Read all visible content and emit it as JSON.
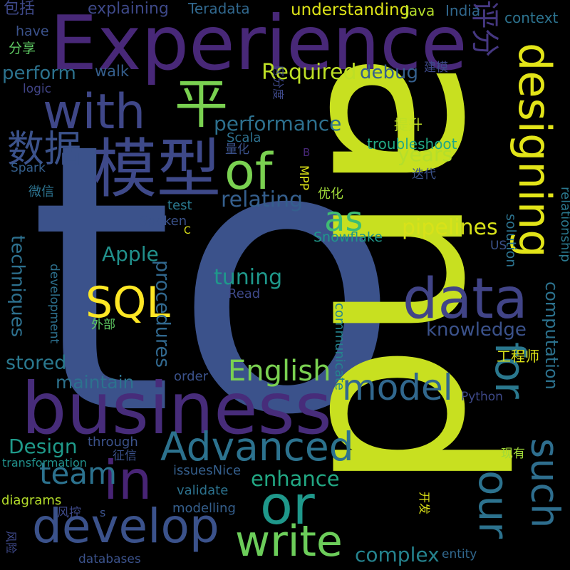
{
  "background": "#000000",
  "words": [
    {
      "text": "to",
      "color": "#3b528b",
      "rot": 0
    },
    {
      "text": "and",
      "color": "#c8e020",
      "rot": 90
    },
    {
      "text": "Experience",
      "color": "#482878",
      "rot": 0
    },
    {
      "text": "business",
      "color": "#472c7a",
      "rot": 0
    },
    {
      "text": "模型",
      "color": "#3e4989",
      "rot": 0
    },
    {
      "text": "with",
      "color": "#3f4788",
      "rot": 0
    },
    {
      "text": "data",
      "color": "#414487",
      "rot": 0
    },
    {
      "text": "designing",
      "color": "#e2e418",
      "rot": 90
    },
    {
      "text": "of",
      "color": "#7ad151",
      "rot": 0
    },
    {
      "text": "develop",
      "color": "#3b528b",
      "rot": 0
    },
    {
      "text": "in",
      "color": "#482475",
      "rot": 0
    },
    {
      "text": "Advanced",
      "color": "#2c728e",
      "rot": 0
    },
    {
      "text": "or",
      "color": "#1f988b",
      "rot": 0
    },
    {
      "text": "our",
      "color": "#2c728e",
      "rot": 90
    },
    {
      "text": "for",
      "color": "#2a788e",
      "rot": 90
    },
    {
      "text": "such",
      "color": "#2e6e8e",
      "rot": 90
    },
    {
      "text": "write",
      "color": "#6ccd5a",
      "rot": 0
    },
    {
      "text": "model",
      "color": "#31688e",
      "rot": 0
    },
    {
      "text": "SQL",
      "color": "#fde725",
      "rot": 0
    },
    {
      "text": "平",
      "color": "#7ad151",
      "rot": 0
    },
    {
      "text": "数据",
      "color": "#3b528b",
      "rot": 0
    },
    {
      "text": "as",
      "color": "#3fbc73",
      "rot": 0
    },
    {
      "text": "English",
      "color": "#7ad151",
      "rot": 0
    },
    {
      "text": "team",
      "color": "#2c728e",
      "rot": 0
    },
    {
      "text": "pipelines",
      "color": "#d8e219",
      "rot": 0
    },
    {
      "text": "Required",
      "color": "#bddf26",
      "rot": 0
    },
    {
      "text": "评分",
      "color": "#453781",
      "rot": 90
    },
    {
      "text": "performance",
      "color": "#2d708e",
      "rot": 0
    },
    {
      "text": "relating",
      "color": "#355f8d",
      "rot": 0
    },
    {
      "text": "years",
      "color": "#b5de2b",
      "rot": 0
    },
    {
      "text": "enhance",
      "color": "#22a884",
      "rot": 0
    },
    {
      "text": "Design",
      "color": "#1f9a8a",
      "rot": 0
    },
    {
      "text": "knowledge",
      "color": "#3b528b",
      "rot": 0
    },
    {
      "text": "procedures",
      "color": "#31688e",
      "rot": 90
    },
    {
      "text": "tuning",
      "color": "#1f988b",
      "rot": 0
    },
    {
      "text": "complex",
      "color": "#25838e",
      "rot": 0
    },
    {
      "text": "Apple",
      "color": "#21918c",
      "rot": 0
    },
    {
      "text": "maintain",
      "color": "#2c728e",
      "rot": 0
    },
    {
      "text": "stored",
      "color": "#2a788e",
      "rot": 0
    },
    {
      "text": "techniques",
      "color": "#2d708e",
      "rot": 90
    },
    {
      "text": "computation",
      "color": "#2c728e",
      "rot": 90
    },
    {
      "text": "understanding",
      "color": "#dde318",
      "rot": 0
    },
    {
      "text": "perform",
      "color": "#2c728e",
      "rot": 0
    },
    {
      "text": "debug",
      "color": "#355f8d",
      "rot": 0
    },
    {
      "text": "explaining",
      "color": "#3e4989",
      "rot": 0
    },
    {
      "text": "Teradata",
      "color": "#31688e",
      "rot": 0
    },
    {
      "text": "包括",
      "color": "#3e4989",
      "rot": 0
    },
    {
      "text": "Java",
      "color": "#b5de2b",
      "rot": 0
    },
    {
      "text": "India",
      "color": "#31688e",
      "rot": 0
    },
    {
      "text": "context",
      "color": "#2c728e",
      "rot": 0
    },
    {
      "text": "have",
      "color": "#3b528b",
      "rot": 0
    },
    {
      "text": "分享",
      "color": "#5ec962",
      "rot": 0
    },
    {
      "text": "walk",
      "color": "#355f8d",
      "rot": 0
    },
    {
      "text": "logic",
      "color": "#414487",
      "rot": 0
    },
    {
      "text": "区分度",
      "color": "#3e4989",
      "rot": 90
    },
    {
      "text": "建模",
      "color": "#3e4989",
      "rot": 0
    },
    {
      "text": "提升",
      "color": "#bddf26",
      "rot": 0
    },
    {
      "text": "Scala",
      "color": "#2d708e",
      "rot": 0
    },
    {
      "text": "troubleshoot",
      "color": "#22a884",
      "rot": 0
    },
    {
      "text": "量化",
      "color": "#3b528b",
      "rot": 0
    },
    {
      "text": "B",
      "color": "#482878",
      "rot": 0
    },
    {
      "text": "Spark",
      "color": "#355f8d",
      "rot": 0
    },
    {
      "text": "MPP",
      "color": "#dde318",
      "rot": 90
    },
    {
      "text": "迭代",
      "color": "#3b528b",
      "rot": 0
    },
    {
      "text": "微信",
      "color": "#2c728e",
      "rot": 0
    },
    {
      "text": "test",
      "color": "#2a788e",
      "rot": 0
    },
    {
      "text": "优化",
      "color": "#a0da39",
      "rot": 0
    },
    {
      "text": "Spoken",
      "color": "#3b528b",
      "rot": 0
    },
    {
      "text": "C",
      "color": "#dde318",
      "rot": 0
    },
    {
      "text": "solution",
      "color": "#2c728e",
      "rot": 90
    },
    {
      "text": "relationship",
      "color": "#2a788e",
      "rot": 90
    },
    {
      "text": "Snowflake",
      "color": "#1f988b",
      "rot": 0
    },
    {
      "text": "US",
      "color": "#3b528b",
      "rot": 0
    },
    {
      "text": "communicate",
      "color": "#25838e",
      "rot": 90
    },
    {
      "text": "Read",
      "color": "#3e4989",
      "rot": 0
    },
    {
      "text": "development",
      "color": "#2d708e",
      "rot": 90
    },
    {
      "text": "外部",
      "color": "#5ec962",
      "rot": 0
    },
    {
      "text": "工程师",
      "color": "#dde318",
      "rot": 0
    },
    {
      "text": "order",
      "color": "#3b528b",
      "rot": 0
    },
    {
      "text": "Python",
      "color": "#3e4989",
      "rot": 0
    },
    {
      "text": "through",
      "color": "#3b528b",
      "rot": 0
    },
    {
      "text": "征信",
      "color": "#3b528b",
      "rot": 0
    },
    {
      "text": "transformation",
      "color": "#21918c",
      "rot": 0
    },
    {
      "text": "现有",
      "color": "#a0da39",
      "rot": 0
    },
    {
      "text": "issuesNice",
      "color": "#355f8d",
      "rot": 0
    },
    {
      "text": "validate",
      "color": "#2c728e",
      "rot": 0
    },
    {
      "text": "diagrams",
      "color": "#b5de2b",
      "rot": 0
    },
    {
      "text": "风控",
      "color": "#3e4989",
      "rot": 0
    },
    {
      "text": "s",
      "color": "#3b528b",
      "rot": 0
    },
    {
      "text": "modelling",
      "color": "#355f8d",
      "rot": 0
    },
    {
      "text": "开发",
      "color": "#dde318",
      "rot": 90
    },
    {
      "text": "风险",
      "color": "#3e4989",
      "rot": 90
    },
    {
      "text": "databases",
      "color": "#3b528b",
      "rot": 0
    },
    {
      "text": "entity",
      "color": "#31688e",
      "rot": 0
    }
  ]
}
